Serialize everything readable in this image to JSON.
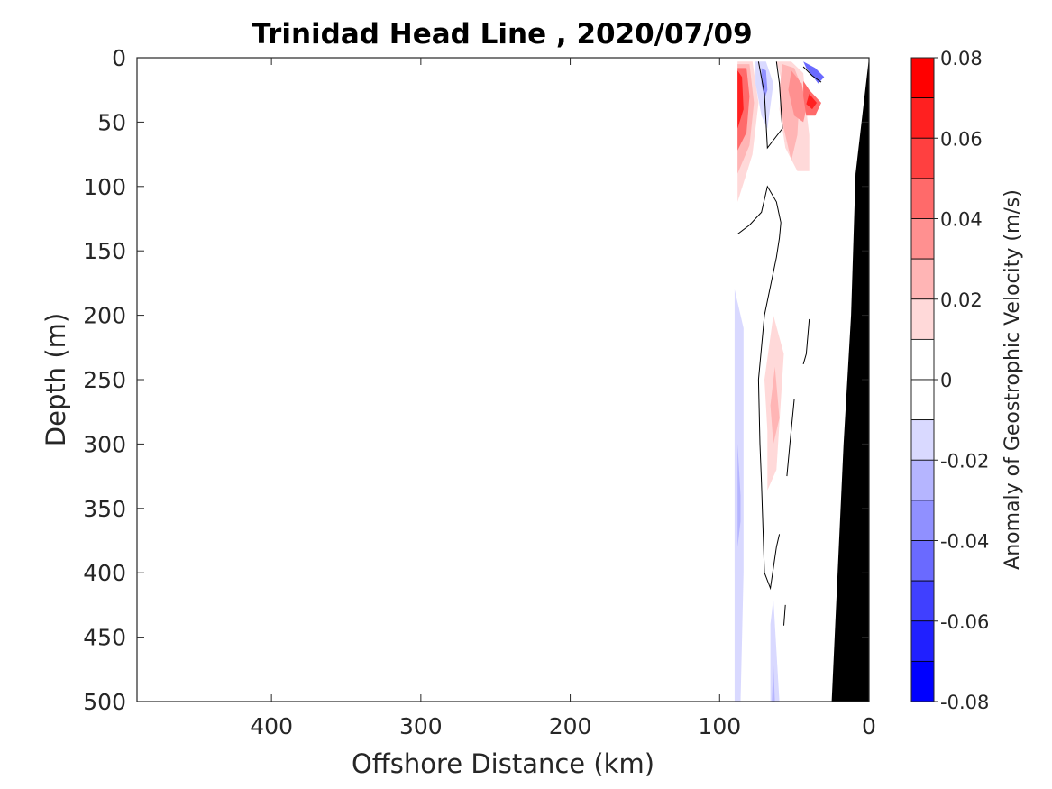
{
  "chart_data": {
    "type": "heatmap",
    "title": "Trinidad Head Line , 2020/07/09",
    "xlabel": "Offshore Distance (km)",
    "ylabel": "Depth (m)",
    "xlim": [
      490,
      0
    ],
    "ylim": [
      0,
      500
    ],
    "x_reversed": true,
    "y_reversed": true,
    "x_ticks": [
      400,
      300,
      200,
      100,
      0
    ],
    "y_ticks": [
      0,
      50,
      100,
      150,
      200,
      250,
      300,
      350,
      400,
      450,
      500
    ],
    "grid": false,
    "colorbar": {
      "label": "Anomaly of Geostrophic Velocity (m/s)",
      "range": [
        -0.08,
        0.08
      ],
      "ticks": [
        0.08,
        0.06,
        0.04,
        0.02,
        0,
        -0.02,
        -0.04,
        -0.06,
        -0.08
      ],
      "tick_labels": [
        "0.08",
        "0.06",
        "0.04",
        "0.02",
        "0",
        "-0.02",
        "-0.04",
        "-0.06",
        "-0.08"
      ],
      "levels": [
        {
          "from": 0.07,
          "to": 0.08,
          "color": "#ff0000"
        },
        {
          "from": 0.06,
          "to": 0.07,
          "color": "#ff2020"
        },
        {
          "from": 0.05,
          "to": 0.06,
          "color": "#ff4040"
        },
        {
          "from": 0.04,
          "to": 0.05,
          "color": "#ff6a6a"
        },
        {
          "from": 0.03,
          "to": 0.04,
          "color": "#ff9090"
        },
        {
          "from": 0.02,
          "to": 0.03,
          "color": "#ffb5b5"
        },
        {
          "from": 0.01,
          "to": 0.02,
          "color": "#ffd9d9"
        },
        {
          "from": 0.0,
          "to": 0.01,
          "color": "#ffffff"
        },
        {
          "from": -0.01,
          "to": 0.0,
          "color": "#ffffff"
        },
        {
          "from": -0.02,
          "to": -0.01,
          "color": "#d9d9ff"
        },
        {
          "from": -0.03,
          "to": -0.02,
          "color": "#b5b5ff"
        },
        {
          "from": -0.04,
          "to": -0.03,
          "color": "#9090ff"
        },
        {
          "from": -0.05,
          "to": -0.04,
          "color": "#6a6aff"
        },
        {
          "from": -0.06,
          "to": -0.05,
          "color": "#4040ff"
        },
        {
          "from": -0.07,
          "to": -0.06,
          "color": "#2020ff"
        },
        {
          "from": -0.08,
          "to": -0.07,
          "color": "#0000ff"
        }
      ]
    },
    "filled_regions": [
      {
        "value": 0.015,
        "points": [
          [
            88,
            3
          ],
          [
            78,
            3
          ],
          [
            74,
            35
          ],
          [
            78,
            75
          ],
          [
            82,
            90
          ],
          [
            88,
            112
          ]
        ]
      },
      {
        "value": 0.025,
        "points": [
          [
            88,
            5
          ],
          [
            80,
            5
          ],
          [
            77,
            35
          ],
          [
            80,
            68
          ],
          [
            88,
            90
          ]
        ]
      },
      {
        "value": 0.045,
        "points": [
          [
            88,
            8
          ],
          [
            82,
            8
          ],
          [
            80,
            30
          ],
          [
            82,
            58
          ],
          [
            88,
            72
          ]
        ]
      },
      {
        "value": 0.065,
        "points": [
          [
            88,
            10
          ],
          [
            85,
            15
          ],
          [
            84,
            40
          ],
          [
            88,
            55
          ]
        ]
      },
      {
        "value": 0.015,
        "points": [
          [
            62,
            3
          ],
          [
            52,
            3
          ],
          [
            44,
            12
          ],
          [
            42,
            40
          ],
          [
            40,
            60
          ],
          [
            40,
            88
          ],
          [
            48,
            88
          ],
          [
            56,
            70
          ],
          [
            60,
            40
          ],
          [
            58,
            20
          ]
        ]
      },
      {
        "value": 0.025,
        "points": [
          [
            58,
            5
          ],
          [
            50,
            8
          ],
          [
            46,
            20
          ],
          [
            48,
            60
          ],
          [
            52,
            80
          ],
          [
            57,
            55
          ],
          [
            60,
            25
          ]
        ]
      },
      {
        "value": 0.035,
        "points": [
          [
            52,
            10
          ],
          [
            45,
            20
          ],
          [
            42,
            40
          ],
          [
            44,
            50
          ],
          [
            50,
            45
          ],
          [
            54,
            25
          ]
        ]
      },
      {
        "value": 0.045,
        "points": [
          [
            44,
            18
          ],
          [
            40,
            25
          ],
          [
            32,
            35
          ],
          [
            36,
            45
          ],
          [
            42,
            45
          ],
          [
            44,
            30
          ]
        ]
      },
      {
        "value": 0.065,
        "points": [
          [
            40,
            28
          ],
          [
            35,
            35
          ],
          [
            38,
            40
          ],
          [
            42,
            36
          ]
        ]
      },
      {
        "value": -0.015,
        "points": [
          [
            76,
            3
          ],
          [
            69,
            3
          ],
          [
            64,
            20
          ],
          [
            68,
            55
          ],
          [
            72,
            45
          ],
          [
            76,
            20
          ]
        ]
      },
      {
        "value": -0.035,
        "points": [
          [
            72,
            8
          ],
          [
            69,
            10
          ],
          [
            68,
            25
          ],
          [
            70,
            32
          ],
          [
            72,
            20
          ]
        ]
      },
      {
        "value": -0.045,
        "points": [
          [
            44,
            3
          ],
          [
            36,
            8
          ],
          [
            30,
            15
          ],
          [
            34,
            20
          ],
          [
            42,
            8
          ]
        ]
      },
      {
        "value": 0.015,
        "points": [
          [
            64,
            200
          ],
          [
            57,
            230
          ],
          [
            62,
            320
          ],
          [
            68,
            336
          ],
          [
            68,
            290
          ],
          [
            70,
            250
          ]
        ]
      },
      {
        "value": 0.025,
        "points": [
          [
            63,
            240
          ],
          [
            60,
            280
          ],
          [
            64,
            300
          ],
          [
            66,
            270
          ]
        ]
      },
      {
        "value": -0.015,
        "points": [
          [
            90,
            180
          ],
          [
            84,
            210
          ],
          [
            84,
            400
          ],
          [
            86,
            500
          ],
          [
            90,
            500
          ]
        ]
      },
      {
        "value": -0.025,
        "points": [
          [
            88,
            300
          ],
          [
            86,
            340
          ],
          [
            86,
            360
          ],
          [
            88,
            380
          ]
        ]
      },
      {
        "value": -0.015,
        "points": [
          [
            64,
            420
          ],
          [
            60,
            500
          ],
          [
            66,
            500
          ],
          [
            66,
            440
          ]
        ]
      },
      {
        "value": -0.025,
        "points": [
          [
            64,
            470
          ],
          [
            63,
            500
          ],
          [
            65,
            500
          ]
        ]
      }
    ],
    "contours_zero": [
      [
        [
          74,
          3
        ],
        [
          70,
          28
        ],
        [
          68,
          70
        ],
        [
          58,
          55
        ],
        [
          60,
          20
        ],
        [
          62,
          3
        ]
      ],
      [
        [
          88,
          137
        ],
        [
          80,
          130
        ],
        [
          72,
          120
        ],
        [
          68,
          100
        ],
        [
          62,
          112
        ],
        [
          59,
          128
        ],
        [
          60,
          140
        ],
        [
          62,
          155
        ],
        [
          70,
          200
        ],
        [
          74,
          250
        ],
        [
          73,
          300
        ],
        [
          72,
          330
        ],
        [
          70,
          400
        ],
        [
          66,
          412
        ],
        [
          62,
          380
        ],
        [
          60,
          370
        ]
      ],
      [
        [
          44,
          7
        ],
        [
          38,
          14
        ],
        [
          32,
          19
        ]
      ],
      [
        [
          40,
          203
        ],
        [
          42,
          230
        ],
        [
          44,
          238
        ]
      ],
      [
        [
          50,
          265
        ],
        [
          53,
          300
        ],
        [
          55,
          325
        ]
      ],
      [
        [
          56,
          425
        ],
        [
          57,
          441
        ]
      ]
    ],
    "bathymetry": [
      [
        0,
        0
      ],
      [
        9,
        90
      ],
      [
        12,
        200
      ],
      [
        17,
        300
      ],
      [
        21,
        400
      ],
      [
        25,
        500
      ],
      [
        0,
        500
      ]
    ]
  }
}
